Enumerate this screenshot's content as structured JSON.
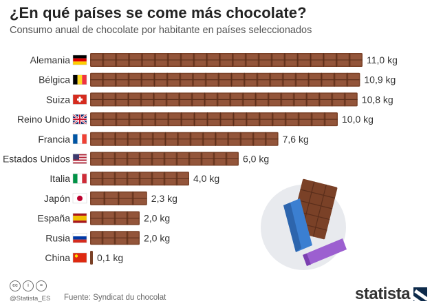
{
  "title": "¿En qué países se come más chocolate?",
  "subtitle": "Consumo anual de chocolate por habitante en países seleccionados",
  "chart_data": {
    "type": "bar",
    "orientation": "horizontal",
    "categories": [
      "Alemania",
      "Bélgica",
      "Suiza",
      "Reino Unido",
      "Francia",
      "Estados Unidos",
      "Italia",
      "Japón",
      "España",
      "Rusia",
      "China"
    ],
    "values": [
      11.0,
      10.9,
      10.8,
      10.0,
      7.6,
      6.0,
      4.0,
      2.3,
      2.0,
      2.0,
      0.1
    ],
    "value_labels": [
      "11,0 kg",
      "10,9 kg",
      "10,8 kg",
      "10,0 kg",
      "7,6 kg",
      "6,0 kg",
      "4,0 kg",
      "2,3 kg",
      "2,0 kg",
      "2,0 kg",
      "0,1 kg"
    ],
    "unit": "kg",
    "flags": [
      "de",
      "be",
      "ch",
      "gb",
      "fr",
      "us",
      "it",
      "jp",
      "es",
      "ru",
      "cn"
    ],
    "bar_color": "#7a4127"
  },
  "footer": {
    "handle": "@Statista_ES",
    "source": "Fuente: Syndicat du chocolat",
    "logo": "statista",
    "license_icons": [
      "cc",
      "by",
      "="
    ]
  },
  "colors": {
    "chocolate": "#7a4127",
    "chocolate_light": "#93553a",
    "chocolate_dark": "#5a2e1b",
    "wrapper_blue": "#3b7fd1",
    "wrapper_purple": "#9c5fd0",
    "illustration_bg": "#e8eaee"
  }
}
